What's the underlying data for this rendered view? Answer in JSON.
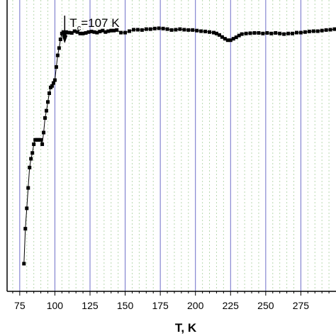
{
  "chart_data": {
    "type": "scatter",
    "xlabel": "T, K",
    "ylabel": "",
    "title": "",
    "xlim": [
      66,
      300
    ],
    "ylim": [
      0,
      1
    ],
    "x_ticks": [
      75,
      100,
      125,
      150,
      175,
      200,
      225,
      250,
      275
    ],
    "x_tick_labels": [
      "75",
      "100",
      "125",
      "150",
      "175",
      "200",
      "225",
      "250",
      "275"
    ],
    "grid": "on",
    "annotation": {
      "prefix": "T",
      "subscript": "c",
      "suffix": "=107 K",
      "x": 107
    },
    "series": [
      {
        "marker": "square",
        "color": "#000000",
        "points": [
          [
            78,
            0.095
          ],
          [
            79,
            0.215
          ],
          [
            80,
            0.285
          ],
          [
            81,
            0.355
          ],
          [
            82,
            0.425
          ],
          [
            83,
            0.455
          ],
          [
            84,
            0.475
          ],
          [
            85,
            0.505
          ],
          [
            86,
            0.52
          ],
          [
            87,
            0.52
          ],
          [
            88,
            0.52
          ],
          [
            89,
            0.52
          ],
          [
            90,
            0.52
          ],
          [
            91,
            0.505
          ],
          [
            92,
            0.545
          ],
          [
            93,
            0.595
          ],
          [
            94,
            0.62
          ],
          [
            95,
            0.65
          ],
          [
            96,
            0.68
          ],
          [
            97,
            0.7
          ],
          [
            98,
            0.705
          ],
          [
            99,
            0.715
          ],
          [
            100,
            0.725
          ],
          [
            101,
            0.77
          ],
          [
            102,
            0.81
          ],
          [
            103,
            0.835
          ],
          [
            104,
            0.865
          ],
          [
            105,
            0.885
          ],
          [
            106,
            0.89
          ],
          [
            107,
            0.882
          ],
          [
            108,
            0.89
          ],
          [
            109,
            0.888
          ],
          [
            110,
            0.888
          ],
          [
            112,
            0.887
          ],
          [
            114,
            0.893
          ],
          [
            116,
            0.89
          ],
          [
            118,
            0.885
          ],
          [
            120,
            0.885
          ],
          [
            122,
            0.887
          ],
          [
            124,
            0.89
          ],
          [
            126,
            0.892
          ],
          [
            128,
            0.89
          ],
          [
            130,
            0.888
          ],
          [
            132,
            0.892
          ],
          [
            134,
            0.895
          ],
          [
            136,
            0.89
          ],
          [
            138,
            0.893
          ],
          [
            140,
            0.895
          ],
          [
            142,
            0.895
          ],
          [
            144,
            0.897
          ],
          [
            147,
            0.888
          ],
          [
            150,
            0.888
          ],
          [
            153,
            0.893
          ],
          [
            156,
            0.898
          ],
          [
            159,
            0.898
          ],
          [
            162,
            0.897
          ],
          [
            165,
            0.9
          ],
          [
            168,
            0.9
          ],
          [
            171,
            0.902
          ],
          [
            174,
            0.903
          ],
          [
            177,
            0.902
          ],
          [
            180,
            0.9
          ],
          [
            183,
            0.897
          ],
          [
            186,
            0.898
          ],
          [
            189,
            0.9
          ],
          [
            192,
            0.898
          ],
          [
            195,
            0.897
          ],
          [
            198,
            0.897
          ],
          [
            201,
            0.895
          ],
          [
            204,
            0.893
          ],
          [
            207,
            0.892
          ],
          [
            210,
            0.89
          ],
          [
            213,
            0.888
          ],
          [
            215,
            0.885
          ],
          [
            217,
            0.88
          ],
          [
            219,
            0.873
          ],
          [
            221,
            0.867
          ],
          [
            223,
            0.862
          ],
          [
            225,
            0.862
          ],
          [
            227,
            0.867
          ],
          [
            229,
            0.872
          ],
          [
            231,
            0.878
          ],
          [
            233,
            0.883
          ],
          [
            236,
            0.885
          ],
          [
            239,
            0.886
          ],
          [
            242,
            0.887
          ],
          [
            245,
            0.887
          ],
          [
            248,
            0.885
          ],
          [
            251,
            0.887
          ],
          [
            254,
            0.885
          ],
          [
            257,
            0.887
          ],
          [
            260,
            0.885
          ],
          [
            263,
            0.883
          ],
          [
            266,
            0.885
          ],
          [
            269,
            0.885
          ],
          [
            272,
            0.888
          ],
          [
            275,
            0.888
          ],
          [
            278,
            0.89
          ],
          [
            281,
            0.892
          ],
          [
            284,
            0.893
          ],
          [
            287,
            0.893
          ],
          [
            290,
            0.895
          ],
          [
            293,
            0.897
          ],
          [
            296,
            0.898
          ],
          [
            299,
            0.9
          ]
        ]
      }
    ]
  }
}
